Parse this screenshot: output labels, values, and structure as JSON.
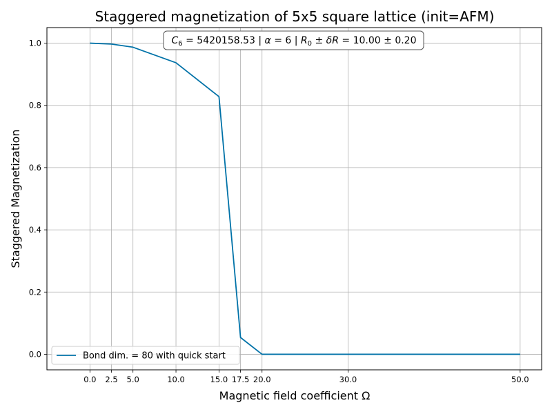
{
  "chart_data": {
    "type": "line",
    "title": "Staggered magnetization of 5x5 square lattice (init=AFM)",
    "xlabel": "Magnetic field coefficient Ω",
    "ylabel": "Staggered Magnetization",
    "xlim": [
      -5.0,
      52.5
    ],
    "ylim": [
      -0.05,
      1.05
    ],
    "grid": true,
    "legend_position": "lower-left",
    "annotation": {
      "c_sym": "C",
      "c_sub": "6",
      "c_val": " = 5420158.53 | ",
      "alpha_sym": "α",
      "alpha_val": " = 6 | ",
      "r_sym": "R",
      "r_sub": "0",
      "r_mid": " ± ",
      "dr_delta": "δ",
      "dr_sym": "R",
      "r_val": " = 10.00 ± 0.20"
    },
    "x_ticks": [
      0.0,
      2.5,
      5.0,
      10.0,
      15.0,
      17.5,
      20.0,
      30.0,
      50.0
    ],
    "x_tick_labels": [
      "0.0",
      "2.5",
      "5.0",
      "10.0",
      "15.0",
      "17.5",
      "20.0",
      "30.0",
      "50.0"
    ],
    "y_ticks": [
      0.0,
      0.2,
      0.4,
      0.6,
      0.8,
      1.0
    ],
    "y_tick_labels": [
      "0.0",
      "0.2",
      "0.4",
      "0.6",
      "0.8",
      "1.0"
    ],
    "series": [
      {
        "name": "Bond dim. = 80 with quick start",
        "color": "#0072a8",
        "x": [
          0.0,
          2.5,
          5.0,
          10.0,
          15.0,
          17.5,
          20.0,
          30.0,
          50.0
        ],
        "y": [
          1.0,
          0.997,
          0.987,
          0.937,
          0.828,
          0.054,
          0.0,
          0.0,
          0.0
        ]
      }
    ]
  }
}
